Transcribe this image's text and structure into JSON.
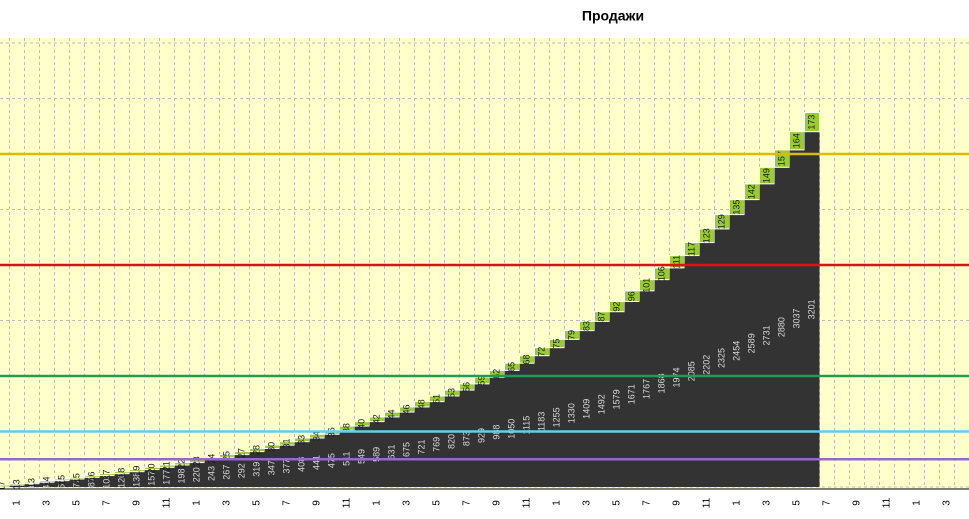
{
  "chart_data": {
    "type": "stacked_bar",
    "title": "Продажи",
    "categories": [
      null,
      1,
      null,
      3,
      null,
      5,
      null,
      7,
      null,
      9,
      null,
      11,
      null,
      1,
      null,
      3,
      null,
      5,
      null,
      7,
      null,
      9,
      null,
      11,
      null,
      1,
      null,
      3,
      null,
      5,
      null,
      7,
      null,
      9,
      null,
      11,
      null,
      1,
      null,
      3,
      null,
      5,
      null,
      7,
      null,
      9,
      null,
      11,
      null,
      1,
      null,
      3,
      null,
      5,
      null,
      7,
      null,
      9,
      null,
      11,
      null,
      1,
      null,
      3,
      null
    ],
    "series": [
      {
        "color": "#333333",
        "label_color": "#d8d8d8",
        "values": [
          0,
          17,
          30,
          43,
          57,
          72,
          87,
          103,
          120,
          138,
          157,
          177,
          198,
          220,
          243,
          267,
          292,
          319,
          347,
          377,
          408,
          441,
          475,
          511,
          549,
          589,
          631,
          675,
          721,
          769,
          820,
          873,
          929,
          988,
          1050,
          1115,
          1183,
          1255,
          1330,
          1409,
          1492,
          1579,
          1671,
          1767,
          1868,
          1974,
          2085,
          2202,
          2325,
          2454,
          2589,
          2731,
          2880,
          3037,
          3201,
          null,
          null,
          null,
          null,
          null,
          null,
          null,
          null,
          null,
          null
        ]
      },
      {
        "color": "#99cc33",
        "label_color": "#1a1a1a",
        "values": [
          17,
          13,
          13,
          14,
          15,
          15,
          16,
          17,
          18,
          19,
          20,
          21,
          22,
          23,
          24,
          25,
          27,
          28,
          30,
          31,
          33,
          34,
          36,
          38,
          40,
          42,
          44,
          46,
          48,
          51,
          53,
          56,
          59,
          62,
          65,
          68,
          72,
          75,
          79,
          83,
          87,
          92,
          96,
          101,
          106,
          111,
          117,
          123,
          129,
          135,
          142,
          149,
          157,
          164,
          173,
          null,
          null,
          null,
          null,
          null,
          null,
          null,
          null,
          null,
          null
        ]
      }
    ],
    "ylim": [
      0,
      4000
    ],
    "yticks": [
      0,
      500,
      1000,
      1500,
      2000,
      2500,
      3000,
      3500,
      4000
    ],
    "grid": true,
    "reference_lines": [
      {
        "value": 250,
        "color": "#9966cc"
      },
      {
        "value": 500,
        "color": "#66ccee"
      },
      {
        "value": 1000,
        "color": "#229955"
      },
      {
        "value": 2000,
        "color": "#dd1111"
      },
      {
        "value": 3000,
        "color": "#ddbb00"
      }
    ]
  }
}
